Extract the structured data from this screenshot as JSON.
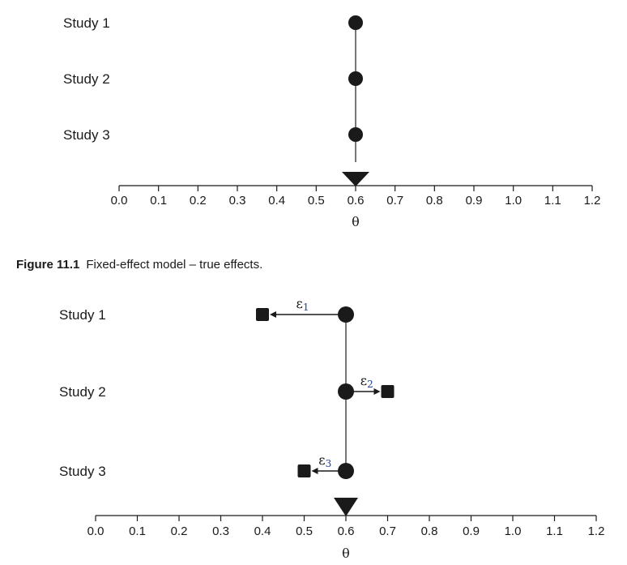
{
  "caption": {
    "number": "Figure 11.1",
    "text": "Fixed-effect model – true effects."
  },
  "chart_data": [
    {
      "type": "scatter",
      "title": "Fixed-effect model – true effects",
      "xlabel": "θ",
      "xlim": [
        0.0,
        1.2
      ],
      "xticks": [
        "0.0",
        "0.1",
        "0.2",
        "0.3",
        "0.4",
        "0.5",
        "0.6",
        "0.7",
        "0.8",
        "0.9",
        "1.0",
        "1.1",
        "1.2"
      ],
      "categories": [
        "Study 1",
        "Study 2",
        "Study 3"
      ],
      "true_effects": [
        0.6,
        0.6,
        0.6
      ],
      "combined_effect": 0.6
    },
    {
      "type": "scatter",
      "xlabel": "θ",
      "xlim": [
        0.0,
        1.2
      ],
      "xticks": [
        "0.0",
        "0.1",
        "0.2",
        "0.3",
        "0.4",
        "0.5",
        "0.6",
        "0.7",
        "0.8",
        "0.9",
        "1.0",
        "1.1",
        "1.2"
      ],
      "categories": [
        "Study 1",
        "Study 2",
        "Study 3"
      ],
      "true_effects": [
        0.6,
        0.6,
        0.6
      ],
      "observed_effects": [
        0.4,
        0.7,
        0.5
      ],
      "error_labels": [
        {
          "sym": "ε",
          "sub": "1"
        },
        {
          "sym": "ε",
          "sub": "2"
        },
        {
          "sym": "ε",
          "sub": "3"
        }
      ],
      "combined_effect": 0.6
    }
  ]
}
